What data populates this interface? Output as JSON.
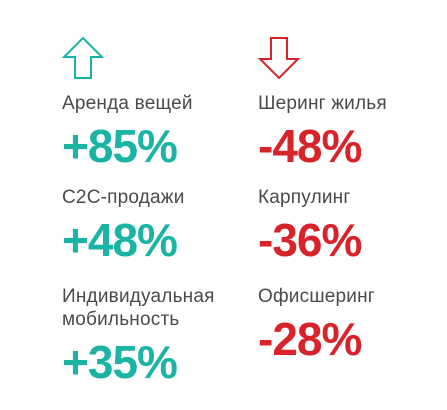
{
  "colors": {
    "increase": "#1bb3a4",
    "decrease": "#d8232a",
    "label": "#4a4a4a"
  },
  "growth": {
    "icon": "arrow-up-icon",
    "items": [
      {
        "label": "Аренда вещей",
        "value": "+85%"
      },
      {
        "label": "С2С-продажи",
        "value": "+48%"
      },
      {
        "label_lines": [
          "Индивидуальная",
          "мобильность"
        ],
        "value": "+35%"
      }
    ]
  },
  "decline": {
    "icon": "arrow-down-icon",
    "items": [
      {
        "label": "Шеринг жилья",
        "value": "-48%"
      },
      {
        "label": "Карпулинг",
        "value": "-36%"
      },
      {
        "label": "Офисшеринг",
        "value": "-28%"
      }
    ]
  }
}
